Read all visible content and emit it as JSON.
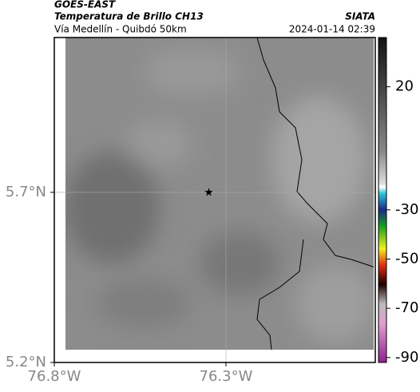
{
  "header": {
    "source": "GOES-EAST",
    "title": "Temperatura de Brillo CH13",
    "brand": "SIATA",
    "subtitle": "Vía Medellín - Quibdó 50km",
    "datetime": "2024-01-14 02:39"
  },
  "map": {
    "type": "map",
    "xlim": [
      -76.8,
      -75.865
    ],
    "ylim": [
      5.2,
      6.155
    ],
    "xticks": [
      {
        "value": -76.8,
        "label": "76.8°W"
      },
      {
        "value": -76.3,
        "label": "76.3°W"
      }
    ],
    "yticks": [
      {
        "value": 5.2,
        "label": "5.2°N"
      },
      {
        "value": 5.7,
        "label": "5.7°N"
      }
    ],
    "grid": true,
    "marker": {
      "lat": 5.7,
      "lon": -76.35
    },
    "colorbar": {
      "lim": [
        -92,
        40
      ],
      "ticks": [
        20,
        -30,
        -50,
        -70,
        -90
      ]
    }
  }
}
